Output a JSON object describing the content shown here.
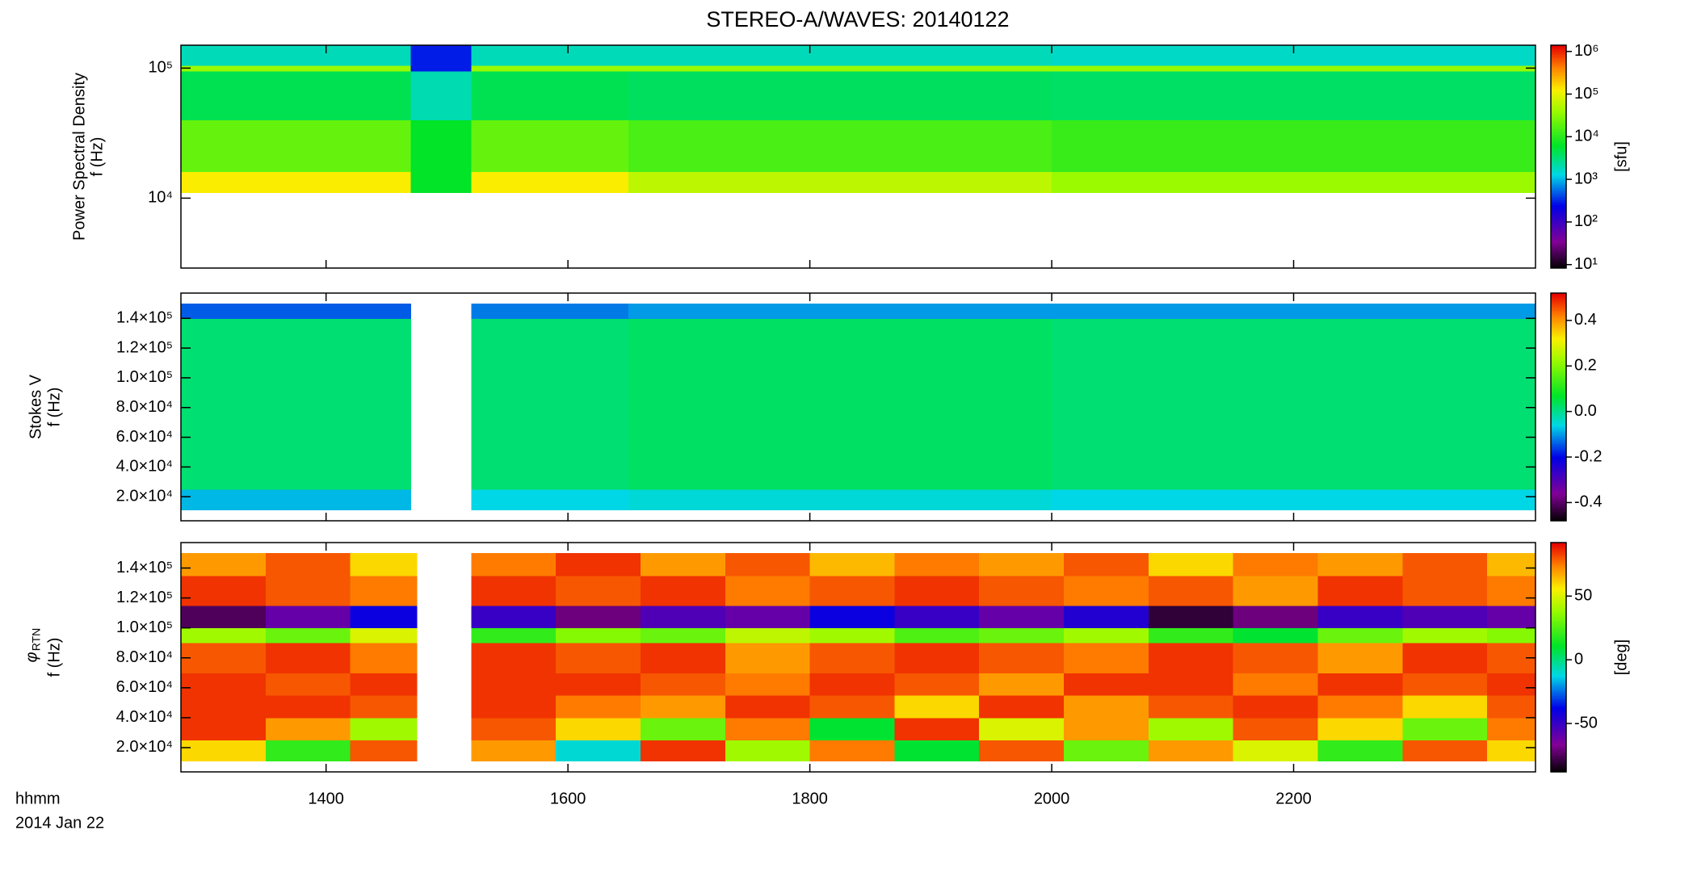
{
  "title": "STEREO-A/WAVES: 20140122",
  "xlabel": "hhmm",
  "date_label": "2014 Jan 22",
  "x_axis": {
    "xlim": [
      12.8,
      24.0
    ],
    "xticks": [
      {
        "value": 14,
        "label": "1400"
      },
      {
        "value": 16,
        "label": "1600"
      },
      {
        "value": 18,
        "label": "1800"
      },
      {
        "value": 20,
        "label": "2000"
      },
      {
        "value": 22,
        "label": "2200"
      }
    ]
  },
  "chart_data": [
    {
      "type": "heatmap",
      "ylabel": [
        "Power Spectral Density",
        "f (Hz)"
      ],
      "log": true,
      "ylim": [
        2900,
        150000
      ],
      "yticks": [
        {
          "value": 10000,
          "label": "10⁴"
        },
        {
          "value": 100000,
          "label": "10⁵"
        }
      ],
      "x_edges": [
        12.8,
        14.7,
        15.2,
        16.5,
        20.0,
        24.0
      ],
      "y_edges": [
        11000,
        16000,
        40000,
        95000,
        105000,
        150000
      ],
      "z": [
        [
          130000,
          6300,
          130000,
          60000,
          40000
        ],
        [
          21000,
          6300,
          21000,
          15000,
          12000
        ],
        [
          4400,
          2000,
          4400,
          4000,
          3800
        ],
        [
          38000,
          300,
          38000,
          38000,
          38000
        ],
        [
          1900,
          300,
          1900,
          1900,
          1700
        ]
      ],
      "colorbar": {
        "log": true,
        "clim": [
          8.3,
          1400000
        ],
        "label": "[sfu]",
        "cticks": [
          {
            "value": 10,
            "label": "10¹"
          },
          {
            "value": 100,
            "label": "10²"
          },
          {
            "value": 1000,
            "label": "10³"
          },
          {
            "value": 10000,
            "label": "10⁴"
          },
          {
            "value": 100000,
            "label": "10⁵"
          },
          {
            "value": 1000000,
            "label": "10⁶"
          }
        ]
      }
    },
    {
      "type": "heatmap",
      "ylabel": [
        "Stokes V",
        "f (Hz)"
      ],
      "log": false,
      "ylim": [
        3800,
        157000
      ],
      "yticks": [
        {
          "value": 20000,
          "label": "2.0×10⁴"
        },
        {
          "value": 40000,
          "label": "4.0×10⁴"
        },
        {
          "value": 60000,
          "label": "6.0×10⁴"
        },
        {
          "value": 80000,
          "label": "8.0×10⁴"
        },
        {
          "value": 100000,
          "label": "1.0×10⁵"
        },
        {
          "value": 120000,
          "label": "1.2×10⁵"
        },
        {
          "value": 140000,
          "label": "1.4×10⁵"
        }
      ],
      "x_edges": [
        12.8,
        14.7,
        15.2,
        16.5,
        20.0,
        24.0
      ],
      "y_edges": [
        11200,
        25000,
        140000,
        150000
      ],
      "z": [
        [
          -0.08,
          null,
          -0.06,
          -0.05,
          -0.06
        ],
        [
          0.02,
          null,
          0.02,
          0.03,
          0.02
        ],
        [
          -0.14,
          null,
          -0.12,
          -0.1,
          -0.1
        ]
      ],
      "colorbar": {
        "log": false,
        "clim": [
          -0.48,
          0.52
        ],
        "cticks": [
          -0.4,
          -0.2,
          {
            "value": 0,
            "label": "0.0"
          },
          0.2,
          0.4
        ]
      }
    },
    {
      "type": "heatmap",
      "ylabel": [
        "φ",
        "f (Hz)"
      ],
      "ylabel_sub": "RTN",
      "log": false,
      "ylim": [
        3800,
        157000
      ],
      "yticks": [
        {
          "value": 20000,
          "label": "2.0×10⁴"
        },
        {
          "value": 40000,
          "label": "4.0×10⁴"
        },
        {
          "value": 60000,
          "label": "6.0×10⁴"
        },
        {
          "value": 80000,
          "label": "8.0×10⁴"
        },
        {
          "value": 100000,
          "label": "1.0×10⁵"
        },
        {
          "value": 120000,
          "label": "1.2×10⁵"
        },
        {
          "value": 140000,
          "label": "1.4×10⁵"
        }
      ],
      "x_edges": [
        12.8,
        13.5,
        14.2,
        14.75,
        15.2,
        15.9,
        16.6,
        17.3,
        18.0,
        18.7,
        19.4,
        20.1,
        20.8,
        21.5,
        22.2,
        22.9,
        23.6,
        24.0
      ],
      "y_edges": [
        11200,
        25000,
        40000,
        55000,
        70000,
        90000,
        100000,
        115000,
        135000,
        150000
      ],
      "z": [
        [
          60,
          20,
          80,
          null,
          70,
          -10,
          85,
          40,
          75,
          10,
          80,
          30,
          70,
          50,
          20,
          80,
          60
        ],
        [
          85,
          70,
          40,
          null,
          80,
          60,
          30,
          75,
          10,
          85,
          50,
          70,
          40,
          80,
          60,
          30,
          75
        ],
        [
          85,
          85,
          80,
          null,
          85,
          75,
          70,
          85,
          80,
          60,
          85,
          70,
          80,
          85,
          75,
          60,
          80
        ],
        [
          85,
          80,
          85,
          null,
          85,
          85,
          80,
          75,
          85,
          80,
          70,
          85,
          85,
          75,
          85,
          80,
          85
        ],
        [
          80,
          85,
          75,
          null,
          85,
          80,
          85,
          70,
          80,
          85,
          80,
          75,
          85,
          80,
          70,
          85,
          80
        ],
        [
          40,
          30,
          50,
          null,
          20,
          35,
          30,
          45,
          40,
          25,
          30,
          40,
          20,
          10,
          30,
          40,
          35
        ],
        [
          -75,
          -60,
          -40,
          null,
          -50,
          -70,
          -55,
          -60,
          -40,
          -50,
          -60,
          -45,
          -80,
          -70,
          -50,
          -55,
          -60
        ],
        [
          85,
          80,
          75,
          null,
          85,
          80,
          85,
          75,
          80,
          85,
          80,
          75,
          80,
          70,
          85,
          80,
          75
        ],
        [
          70,
          80,
          60,
          null,
          75,
          85,
          70,
          80,
          65,
          75,
          70,
          80,
          60,
          75,
          70,
          80,
          65
        ]
      ],
      "colorbar": {
        "log": false,
        "clim": [
          -88,
          92
        ],
        "label": "[deg]",
        "cticks": [
          -50,
          0,
          50
        ]
      }
    }
  ]
}
